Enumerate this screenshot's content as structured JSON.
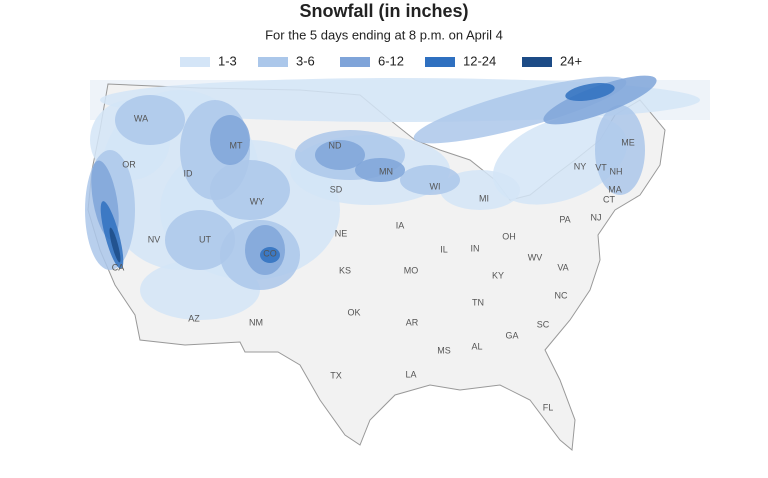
{
  "header": {
    "title": "Snowfall (in inches)",
    "subtitle": "For the 5 days ending at 8 p.m. on April 4"
  },
  "legend": [
    {
      "label": "1-3",
      "color": "#d4e5f7"
    },
    {
      "label": "3-6",
      "color": "#abc7ea"
    },
    {
      "label": "6-12",
      "color": "#7fa4d9"
    },
    {
      "label": "12-24",
      "color": "#2f70c0"
    },
    {
      "label": "24+",
      "color": "#1c4b86"
    }
  ],
  "states": [
    "WA",
    "OR",
    "ID",
    "MT",
    "ND",
    "MN",
    "SD",
    "WY",
    "WI",
    "MI",
    "NV",
    "UT",
    "CO",
    "NE",
    "IA",
    "IL",
    "IN",
    "OH",
    "PA",
    "NY",
    "VT",
    "NH",
    "ME",
    "MA",
    "CT",
    "NJ",
    "CA",
    "AZ",
    "NM",
    "KS",
    "MO",
    "KY",
    "WV",
    "VA",
    "OK",
    "AR",
    "TN",
    "NC",
    "SC",
    "MS",
    "AL",
    "GA",
    "TX",
    "LA",
    "FL"
  ]
}
